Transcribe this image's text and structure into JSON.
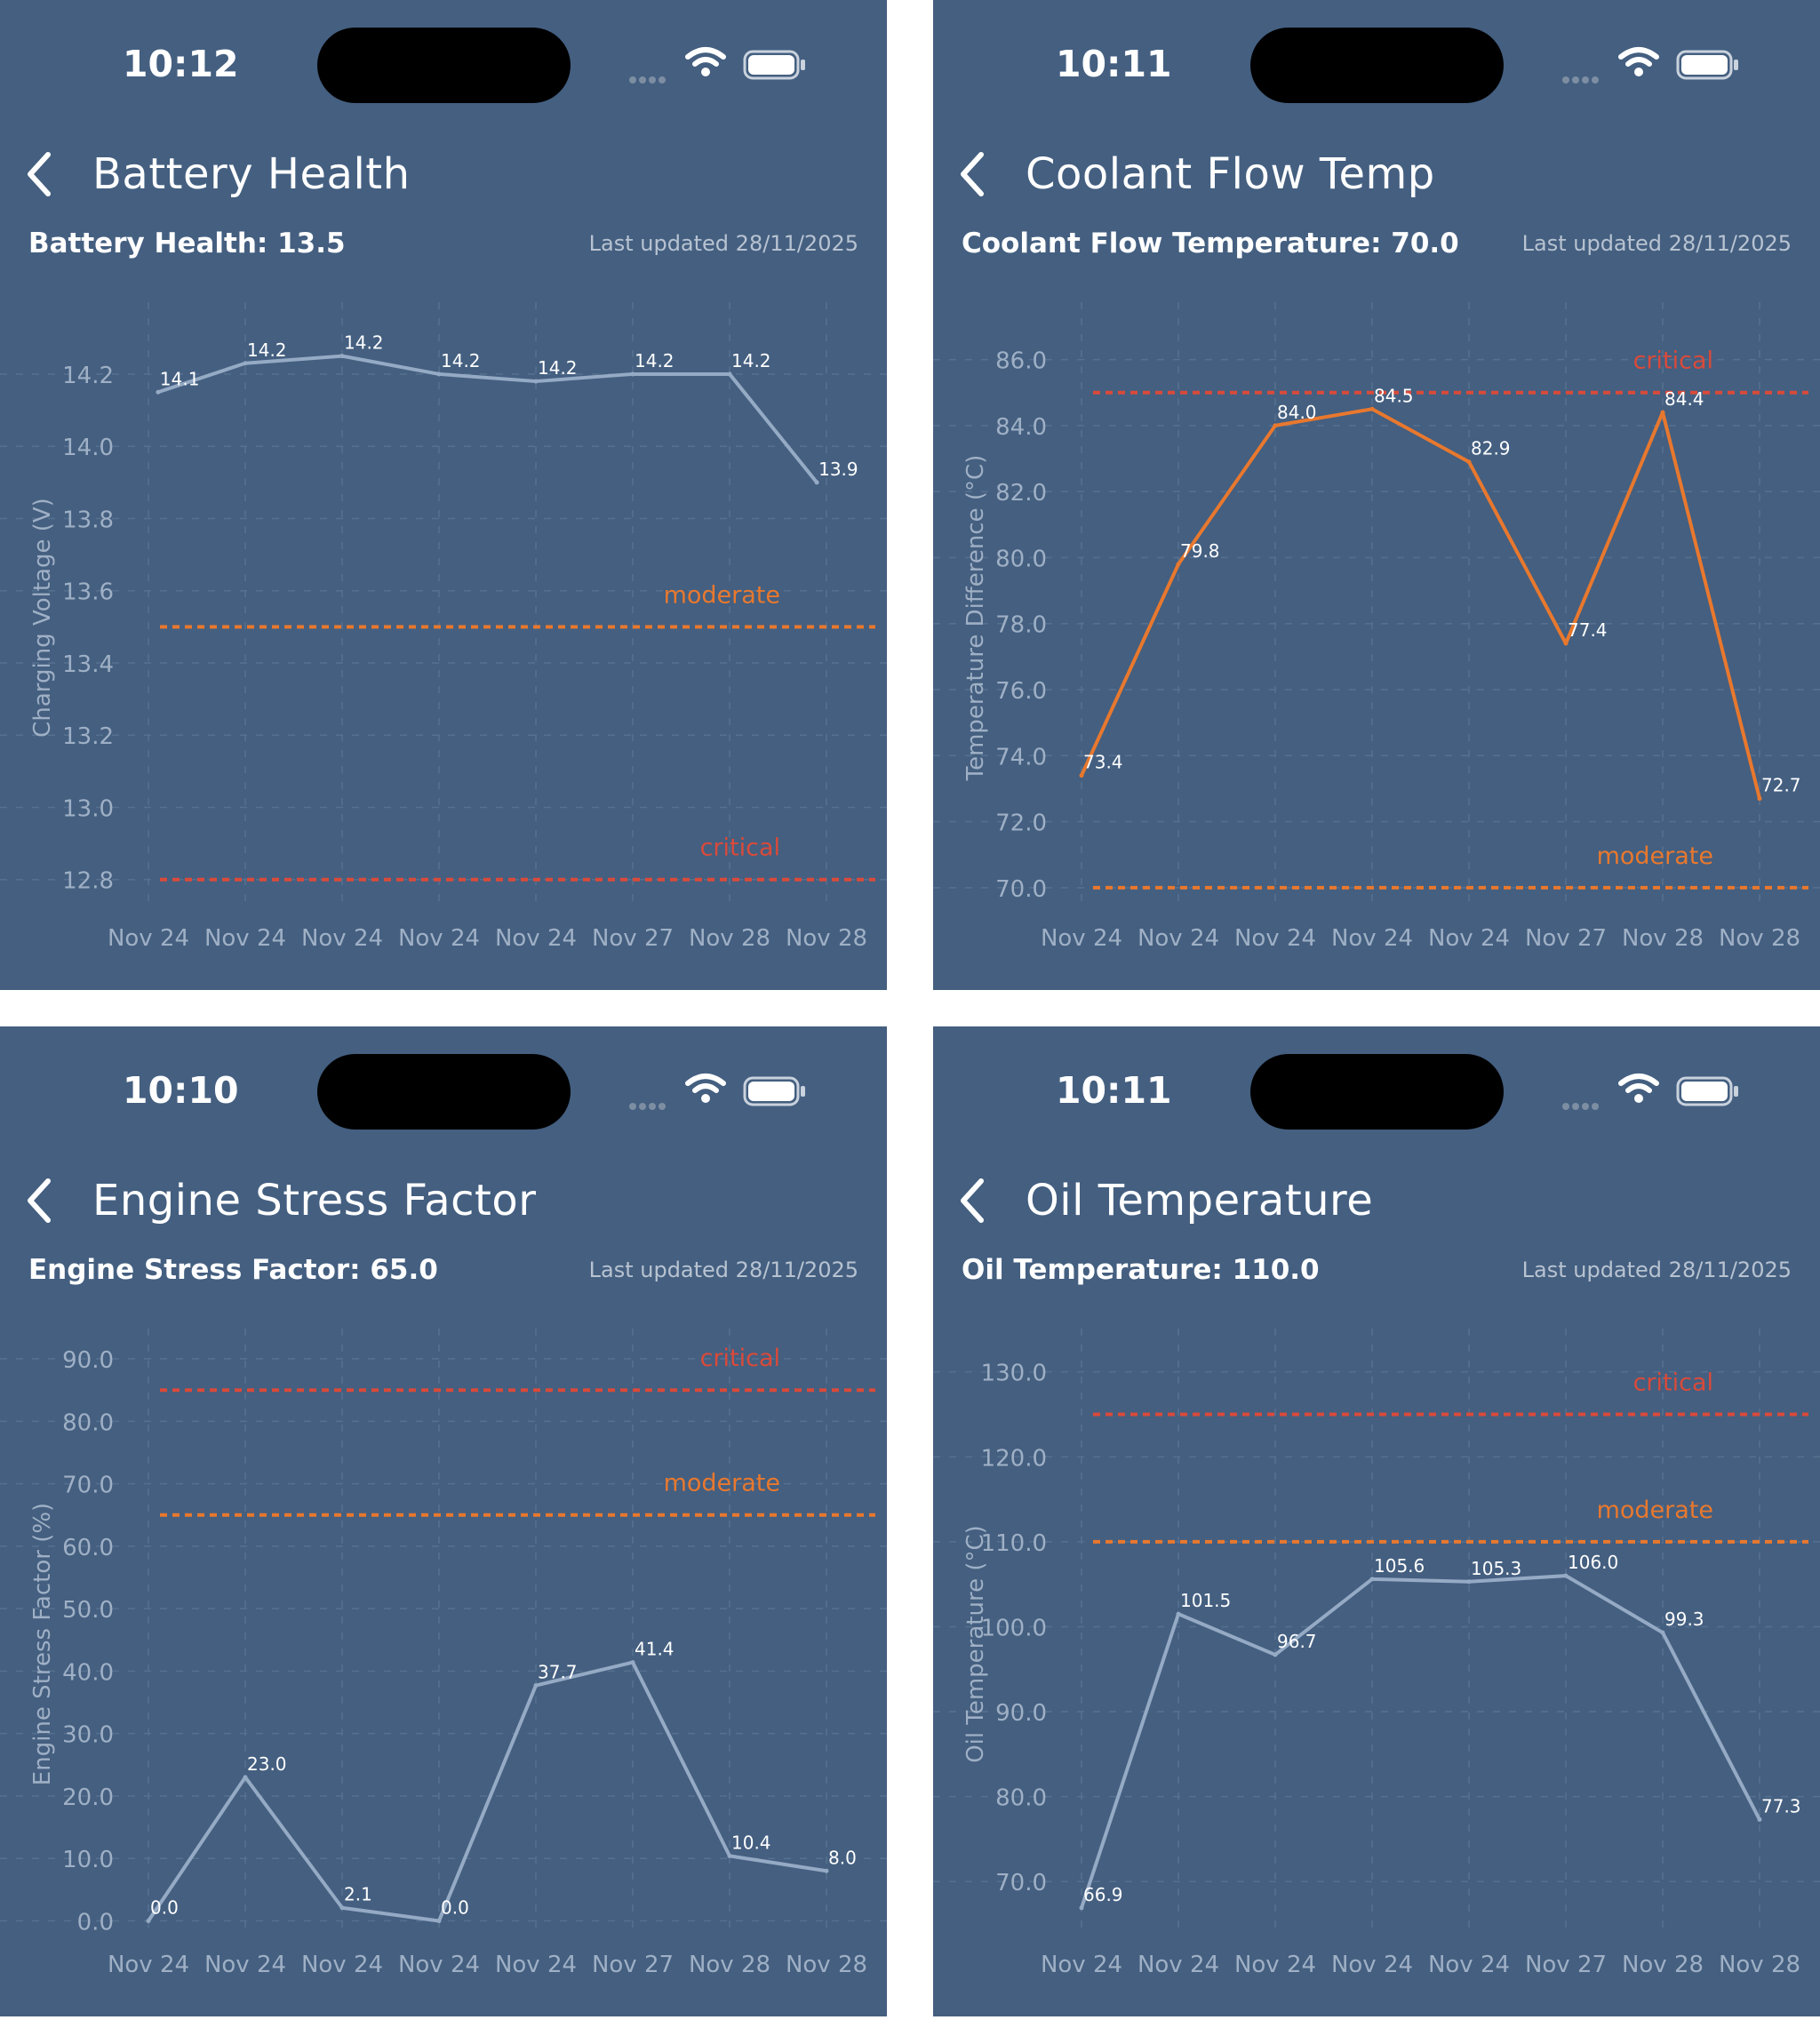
{
  "colors": {
    "background": "#445f80",
    "line_primary": "#95aac4",
    "line_accent": "#e8782e",
    "moderate": "#e8782e",
    "critical": "#d94a3a"
  },
  "panels": [
    {
      "status": {
        "time": "10:12"
      },
      "header": {
        "title": "Battery Health",
        "back_icon": "chevron-left-icon"
      },
      "summary": {
        "value_text": "Battery Health: 13.5",
        "updated_text": "Last updated 28/11/2025"
      },
      "chart_data": {
        "type": "line",
        "title": "",
        "ylabel": "Charging Voltage (V)",
        "xlabel": "",
        "categories": [
          "Nov 24",
          "Nov 24",
          "Nov 24",
          "Nov 24",
          "Nov 24",
          "Nov 27",
          "Nov 28",
          "Nov 28"
        ],
        "x_positions": [
          0,
          1,
          2,
          3,
          4,
          5,
          6,
          7
        ],
        "series": [
          {
            "values": [
              14.15,
              14.23,
              14.25,
              14.2,
              14.18,
              14.2,
              14.2,
              13.9
            ],
            "point_labels": [
              "14.1",
              "14.2",
              "14.2",
              "14.2",
              "14.2",
              "14.2",
              "14.2",
              "13.9"
            ],
            "x": [
              0.1,
              1,
              2,
              3,
              4,
              5,
              6,
              6.9
            ]
          }
        ],
        "line_color": "#95aac4",
        "ylim": [
          12.75,
          14.35
        ],
        "yticks": [
          12.8,
          13.0,
          13.2,
          13.4,
          13.6,
          13.8,
          14.0,
          14.2
        ],
        "ytick_labels": [
          "12.8",
          "13.0",
          "13.2",
          "13.4",
          "13.6",
          "13.8",
          "14.0",
          "14.2"
        ],
        "thresholds": [
          {
            "label": "moderate",
            "value": 13.5,
            "color": "#e8782e"
          },
          {
            "label": "critical",
            "value": 12.8,
            "color": "#d94a3a"
          }
        ],
        "grid": true
      }
    },
    {
      "status": {
        "time": "10:11"
      },
      "header": {
        "title": "Coolant Flow Temp",
        "back_icon": "chevron-left-icon"
      },
      "summary": {
        "value_text": "Coolant Flow Temperature: 70.0",
        "updated_text": "Last updated 28/11/2025"
      },
      "chart_data": {
        "type": "line",
        "title": "",
        "ylabel": "Temperature Difference (°C)",
        "xlabel": "",
        "categories": [
          "Nov 24",
          "Nov 24",
          "Nov 24",
          "Nov 24",
          "Nov 24",
          "Nov 27",
          "Nov 28",
          "Nov 28"
        ],
        "series": [
          {
            "values": [
              73.4,
              79.8,
              84.0,
              84.5,
              82.9,
              77.4,
              84.4,
              72.7
            ],
            "point_labels": [
              "73.4",
              "79.8",
              "84.0",
              "84.5",
              "82.9",
              "77.4",
              "84.4",
              "72.7"
            ],
            "x": [
              0,
              1,
              2,
              3,
              4,
              5,
              6,
              7
            ]
          }
        ],
        "line_color": "#e8782e",
        "ylim": [
          69.7,
          87.2
        ],
        "yticks": [
          70,
          72,
          74,
          76,
          78,
          80,
          82,
          84,
          86
        ],
        "ytick_labels": [
          "70.0",
          "72.0",
          "74.0",
          "76.0",
          "78.0",
          "80.0",
          "82.0",
          "84.0",
          "86.0"
        ],
        "thresholds": [
          {
            "label": "critical",
            "value": 85,
            "color": "#d94a3a"
          },
          {
            "label": "moderate",
            "value": 70,
            "color": "#e8782e"
          }
        ],
        "grid": true
      }
    },
    {
      "status": {
        "time": "10:10"
      },
      "header": {
        "title": "Engine Stress Factor",
        "back_icon": "chevron-left-icon"
      },
      "summary": {
        "value_text": "Engine Stress Factor: 65.0",
        "updated_text": "Last updated 28/11/2025"
      },
      "chart_data": {
        "type": "line",
        "title": "",
        "ylabel": "Engine Stress Factor (%)",
        "xlabel": "",
        "categories": [
          "Nov 24",
          "Nov 24",
          "Nov 24",
          "Nov 24",
          "Nov 24",
          "Nov 27",
          "Nov 28",
          "Nov 28"
        ],
        "series": [
          {
            "values": [
              0.0,
              23.0,
              2.1,
              0.0,
              37.7,
              41.4,
              10.4,
              8.0
            ],
            "point_labels": [
              "0.0",
              "23.0",
              "2.1",
              "0.0",
              "37.7",
              "41.4",
              "10.4",
              "8.0"
            ],
            "x": [
              0,
              1,
              2,
              3,
              4,
              5,
              6,
              7
            ]
          }
        ],
        "line_color": "#95aac4",
        "ylim": [
          -0.5,
          92
        ],
        "yticks": [
          0,
          10,
          20,
          30,
          40,
          50,
          60,
          70,
          80,
          90
        ],
        "ytick_labels": [
          "0.0",
          "10.0",
          "20.0",
          "30.0",
          "40.0",
          "50.0",
          "60.0",
          "70.0",
          "80.0",
          "90.0"
        ],
        "thresholds": [
          {
            "label": "critical",
            "value": 85,
            "color": "#d94a3a"
          },
          {
            "label": "moderate",
            "value": 65,
            "color": "#e8782e"
          }
        ],
        "grid": true
      }
    },
    {
      "status": {
        "time": "10:11"
      },
      "header": {
        "title": "Oil Temperature",
        "back_icon": "chevron-left-icon"
      },
      "summary": {
        "value_text": "Oil Temperature: 110.0",
        "updated_text": "Last updated 28/11/2025"
      },
      "chart_data": {
        "type": "line",
        "title": "",
        "ylabel": "Oil Temperature (°C)",
        "xlabel": "",
        "categories": [
          "Nov 24",
          "Nov 24",
          "Nov 24",
          "Nov 24",
          "Nov 24",
          "Nov 27",
          "Nov 28",
          "Nov 28"
        ],
        "series": [
          {
            "values": [
              66.9,
              101.5,
              96.7,
              105.6,
              105.3,
              106.0,
              99.3,
              77.3
            ],
            "point_labels": [
              "66.9",
              "101.5",
              "96.7",
              "105.6",
              "105.3",
              "106.0",
              "99.3",
              "77.3"
            ],
            "x": [
              0,
              1,
              2,
              3,
              4,
              5,
              6,
              7
            ]
          }
        ],
        "line_color": "#95aac4",
        "ylim": [
          65,
          133
        ],
        "yticks": [
          70,
          80,
          90,
          100,
          110,
          120,
          130
        ],
        "ytick_labels": [
          "70.0",
          "80.0",
          "90.0",
          "100.0",
          "110.0",
          "120.0",
          "130.0"
        ],
        "thresholds": [
          {
            "label": "critical",
            "value": 125,
            "color": "#d94a3a"
          },
          {
            "label": "moderate",
            "value": 110,
            "color": "#e8782e"
          }
        ],
        "grid": true
      }
    }
  ]
}
